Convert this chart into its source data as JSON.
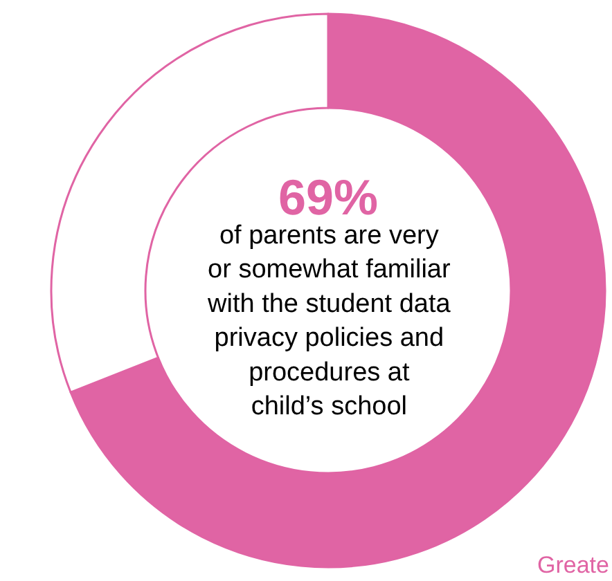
{
  "chart_data": {
    "type": "donut",
    "categories": [
      null,
      null
    ],
    "values": [
      69,
      31
    ],
    "colors": [
      "#e064a4",
      "#ffffff"
    ],
    "annotations": [
      "69%",
      "of parents are very\nor somewhat familiar\nwith the student data\nprivacy policies and\nprocedures at\nchild’s school",
      "Greate"
    ],
    "legend": false
  }
}
